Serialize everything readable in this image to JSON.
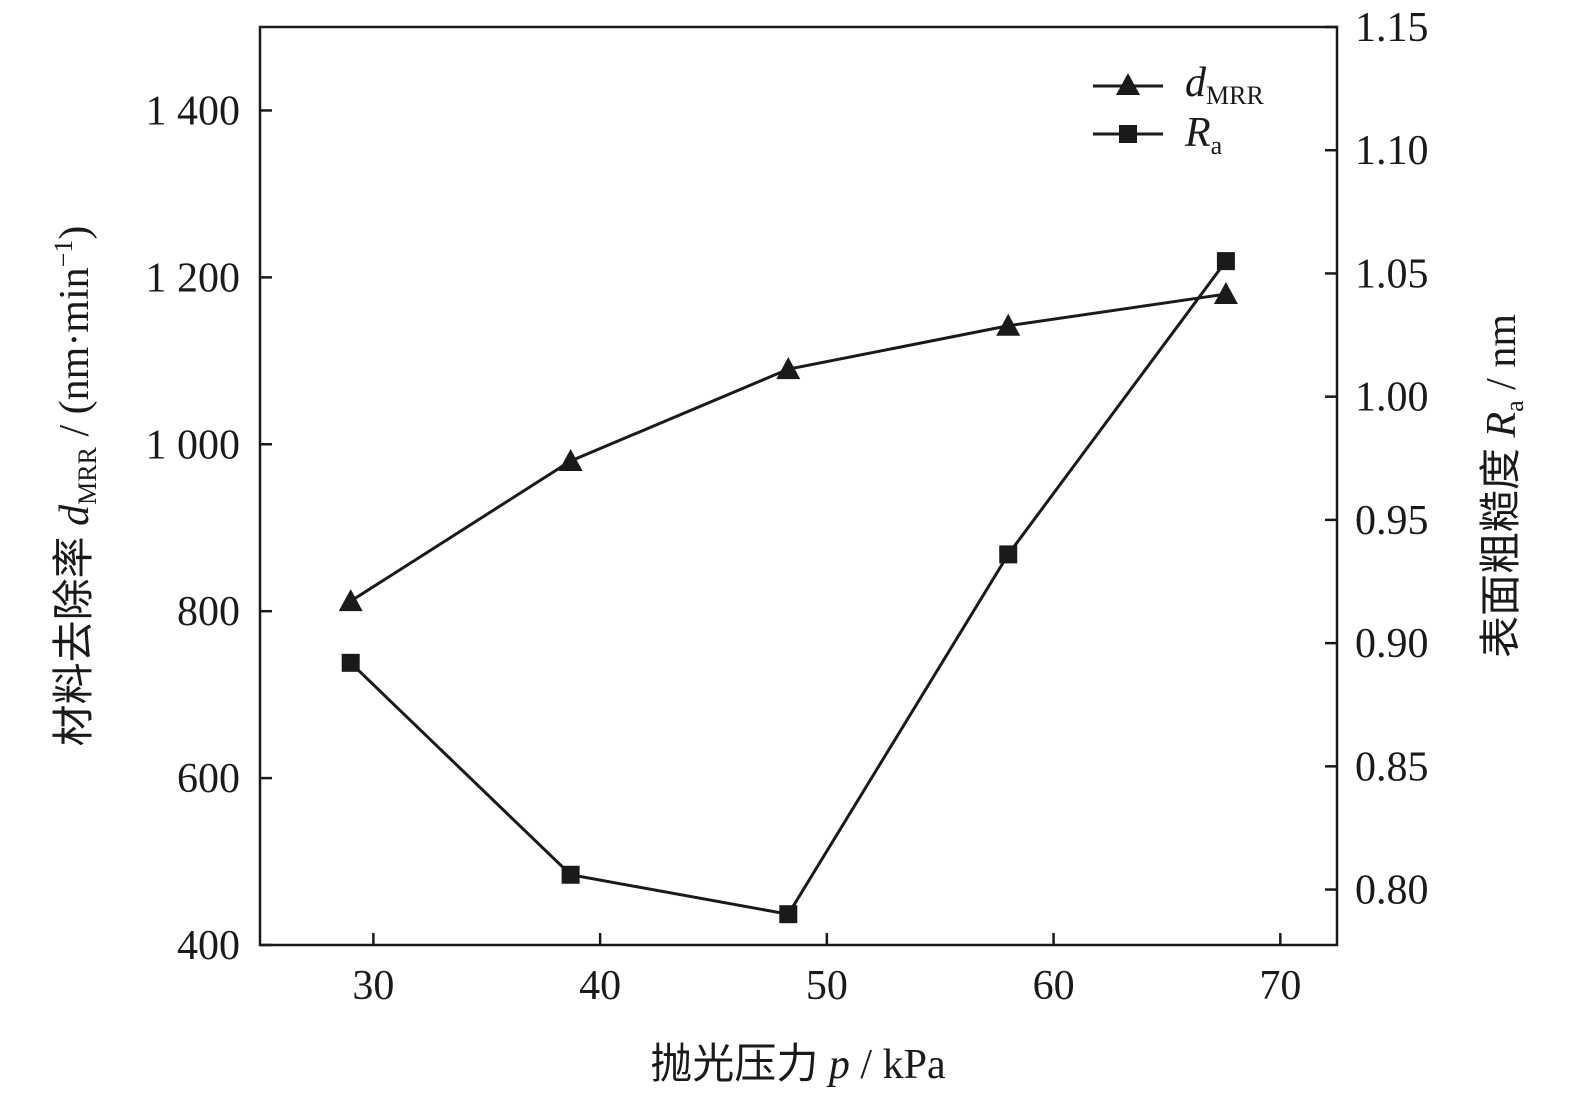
{
  "chart_data": {
    "type": "line",
    "x": [
      29,
      38.7,
      48.3,
      58,
      67.6
    ],
    "xlim": [
      25,
      72.5
    ],
    "x_ticks": [
      30,
      40,
      50,
      60,
      70
    ],
    "x_tick_labels": [
      "30",
      "40",
      "50",
      "60",
      "70"
    ],
    "ylim_left": [
      400,
      1500
    ],
    "y_left_ticks": [
      400,
      600,
      800,
      1000,
      1200,
      1400
    ],
    "y_left_tick_labels": [
      "400",
      "600",
      "800",
      "1 000",
      "1 200",
      "1 400"
    ],
    "ylim_right": [
      0.7775,
      1.15
    ],
    "y_right_ticks": [
      0.8,
      0.85,
      0.9,
      0.95,
      1.0,
      1.05,
      1.1,
      1.15
    ],
    "y_right_tick_labels": [
      "0.80",
      "0.85",
      "0.90",
      "0.95",
      "1.00",
      "1.05",
      "1.10",
      "1.15"
    ],
    "xlabel": {
      "main": "抛光压力 ",
      "var": "p",
      "unit": " / kPa"
    },
    "ylabel_left": {
      "main": "材料去除率 ",
      "var": "d",
      "sub": "MRR",
      "unit": " / (nm·min",
      "sup": "−1",
      "close": ")"
    },
    "ylabel_right": {
      "main": "表面粗糙度 ",
      "var": "R",
      "sub": "a",
      "unit": " / nm"
    },
    "series": [
      {
        "name": "dMRR",
        "name_main": "d",
        "name_sub": "MRR",
        "axis": "left",
        "marker": "triangle",
        "values": [
          812,
          980,
          1090,
          1142,
          1180
        ]
      },
      {
        "name": "Ra",
        "name_main": "R",
        "name_sub": "a",
        "axis": "right",
        "marker": "square",
        "values": [
          0.892,
          0.806,
          0.79,
          0.936,
          1.055
        ]
      }
    ],
    "legend_position": "top-right",
    "grid": false,
    "color": "#1a1a1a"
  }
}
